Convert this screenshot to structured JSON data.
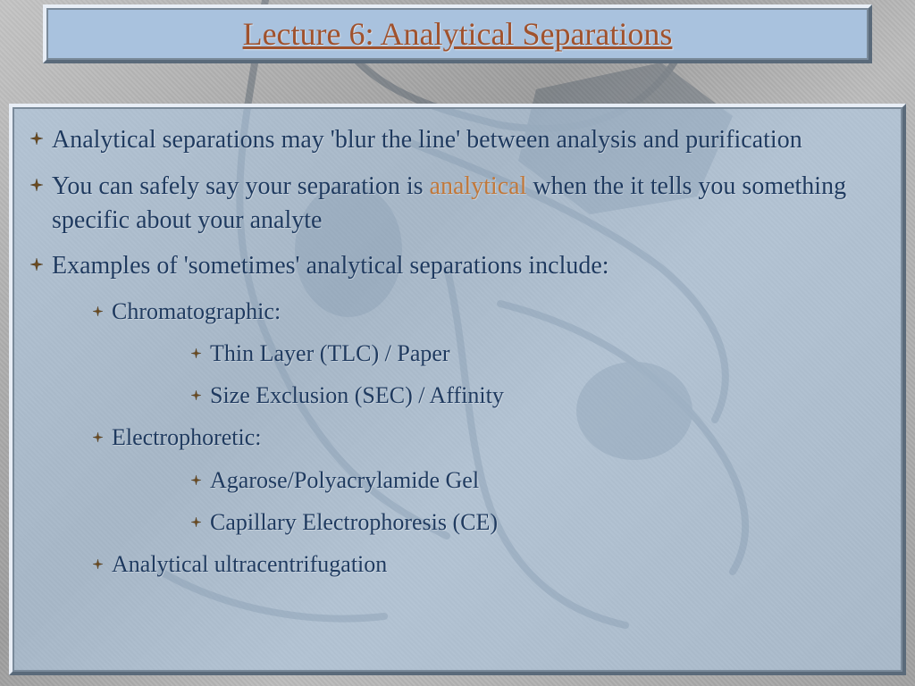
{
  "slide": {
    "title": "Lecture 6: Analytical Separations",
    "colors": {
      "background_gray": "#b0b0b0",
      "panel_blue": "#a9c2de",
      "text_navy": "#1f3a5f",
      "title_brown": "#a0522d",
      "highlight_orange": "#c1783a",
      "border_light": "#e8eef6",
      "border_dark": "#5a6a7a",
      "border_mid": "#7a8a9a"
    },
    "typography": {
      "family": "Palatino Linotype",
      "title_size_pt": 36,
      "body_size_pt": 28,
      "sub_size_pt": 26
    },
    "bullets": [
      {
        "level": 1,
        "text_pre": "Analytical separations may 'blur the line' between analysis and purification",
        "highlight": "",
        "text_post": ""
      },
      {
        "level": 1,
        "text_pre": "You can safely say your separation is ",
        "highlight": "analytical",
        "text_post": " when the it tells you something specific about your analyte"
      },
      {
        "level": 1,
        "text_pre": "Examples of 'sometimes' analytical separations include:",
        "highlight": "",
        "text_post": ""
      },
      {
        "level": 2,
        "text_pre": "Chromatographic:",
        "highlight": "",
        "text_post": ""
      },
      {
        "level": 3,
        "text_pre": "Thin Layer (TLC) / Paper",
        "highlight": "",
        "text_post": ""
      },
      {
        "level": 3,
        "text_pre": "Size Exclusion (SEC) / Affinity",
        "highlight": "",
        "text_post": ""
      },
      {
        "level": 2,
        "text_pre": "Electrophoretic:",
        "highlight": "",
        "text_post": ""
      },
      {
        "level": 3,
        "text_pre": "Agarose/Polyacrylamide Gel",
        "highlight": "",
        "text_post": ""
      },
      {
        "level": 3,
        "text_pre": "Capillary Electrophoresis (CE)",
        "highlight": "",
        "text_post": ""
      },
      {
        "level": 2,
        "text_pre": "Analytical ultracentrifugation",
        "highlight": "",
        "text_post": ""
      }
    ]
  }
}
